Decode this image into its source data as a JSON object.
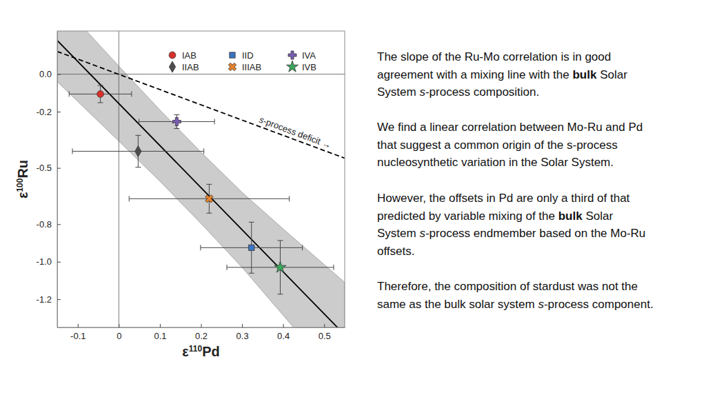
{
  "chart_data": {
    "type": "scatter",
    "xlabel": "ε110Pd",
    "ylabel": "ε100Ru",
    "xlim": [
      -0.15,
      0.55
    ],
    "ylim": [
      -1.35,
      0.23
    ],
    "xticks": [
      -0.1,
      0,
      0.1,
      0.2,
      0.3,
      0.4,
      0.5
    ],
    "yticks": [
      {
        "value": 0,
        "label": "0.0"
      },
      -0.2,
      -0.5,
      -0.8,
      {
        "value": -1,
        "label": "-1.0"
      },
      -1.2
    ],
    "legend": "top-right",
    "series": [
      {
        "name": "IAB",
        "color": "#d9302c",
        "marker": "circle",
        "x": [
          -0.045
        ],
        "x_error": [
          0.076
        ],
        "values": [
          -0.106
        ],
        "y_error": [
          0.046
        ]
      },
      {
        "name": "IIAB",
        "color": "#4d4d4d",
        "marker": "diamond",
        "x": [
          0.047
        ],
        "x_error": [
          0.16
        ],
        "values": [
          -0.411
        ],
        "y_error": [
          0.085
        ]
      },
      {
        "name": "IID",
        "color": "#3b74c2",
        "marker": "square",
        "x": [
          0.323
        ],
        "x_error": [
          0.124
        ],
        "values": [
          -0.925
        ],
        "y_error": [
          0.136
        ]
      },
      {
        "name": "IIIAB",
        "color": "#e8832a",
        "marker": "x",
        "x": [
          0.22
        ],
        "x_error": [
          0.195
        ],
        "values": [
          -0.664
        ],
        "y_error": [
          0.077
        ]
      },
      {
        "name": "IVA",
        "color": "#7a5db3",
        "marker": "plus",
        "x": [
          0.141
        ],
        "x_error": [
          0.092
        ],
        "values": [
          -0.253
        ],
        "y_error": [
          0.037
        ]
      },
      {
        "name": "IVB",
        "color": "#3aa659",
        "marker": "star",
        "x": [
          0.393
        ],
        "x_error": [
          0.13
        ],
        "values": [
          -1.03
        ],
        "y_error": [
          0.143
        ]
      }
    ],
    "fit": {
      "x": [
        -0.15,
        0.55
      ],
      "values": [
        0.18,
        -1.39
      ],
      "color": "#000000",
      "line_style": "solid"
    },
    "confidence_band": {
      "x": [
        -0.15,
        0,
        0.1,
        0.2,
        0.3,
        0.4,
        0.55
      ],
      "upper": [
        0.4,
        0.043,
        -0.191,
        -0.416,
        -0.63,
        -0.825,
        -1.11
      ],
      "lower": [
        -0.04,
        -0.357,
        -0.571,
        -0.796,
        -1.03,
        -1.285,
        -1.67
      ],
      "color": "#cccccc"
    },
    "reference_line": {
      "x": [
        -0.15,
        0.55
      ],
      "values": [
        0.121,
        -0.448
      ],
      "color": "#000000",
      "line_style": "dashed",
      "label": [
        {
          "text": "s",
          "style": "italic"
        },
        {
          "text": "-process deficit →"
        }
      ]
    }
  },
  "side_text": {
    "paragraphs": [
      [
        [
          {
            "text": "The slope of the Ru-Mo correlation is in good"
          }
        ],
        [
          {
            "text": "agreement with a mixing line with the "
          },
          {
            "text": "bulk",
            "style": "bold"
          },
          {
            "text": " Solar"
          }
        ],
        [
          {
            "text": "System "
          },
          {
            "text": "s",
            "style": "italic"
          },
          {
            "text": "-process composition."
          }
        ]
      ],
      [
        [
          {
            "text": "We find a linear correlation between Mo-Ru and Pd"
          }
        ],
        [
          {
            "text": "that suggest a common origin of the s-process"
          }
        ],
        [
          {
            "text": "nucleosynthetic variation in the Solar System."
          }
        ]
      ],
      [
        [
          {
            "text": "However, the offsets in Pd are only a third of that"
          }
        ],
        [
          {
            "text": "predicted by variable mixing of the "
          },
          {
            "text": "bulk",
            "style": "bold"
          },
          {
            "text": " Solar"
          }
        ],
        [
          {
            "text": "System "
          },
          {
            "text": "s",
            "style": "italic"
          },
          {
            "text": "-process endmember based on the Mo-Ru"
          }
        ],
        [
          {
            "text": "offsets."
          }
        ]
      ],
      [
        [
          {
            "text": "Therefore, the composition of stardust was not the"
          }
        ],
        [
          {
            "text": "same as the bulk solar system "
          },
          {
            "text": "s",
            "style": "italic"
          },
          {
            "text": "-process component."
          }
        ]
      ]
    ]
  }
}
